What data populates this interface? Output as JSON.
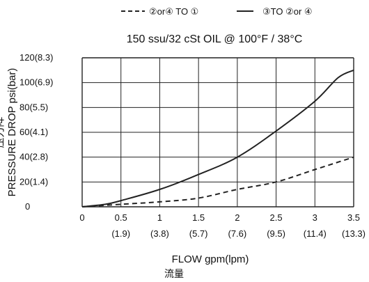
{
  "chart_data": {
    "type": "line",
    "title": "150 ssu/32 cSt OIL @ 100°F / 38°C",
    "xlabel": "FLOW gpm(lpm)",
    "xlabel_cn": "流量",
    "ylabel": "PRESSURE DROP psi(bar)",
    "ylabel_cn": "压力降",
    "xlim": [
      0,
      3.5
    ],
    "ylim": [
      0,
      120
    ],
    "grid": true,
    "legend_position": "top",
    "x_ticks": [
      {
        "value": 0,
        "label": "0",
        "sublabel": ""
      },
      {
        "value": 0.5,
        "label": "0.5",
        "sublabel": "(1.9)"
      },
      {
        "value": 1,
        "label": "1",
        "sublabel": "(3.8)"
      },
      {
        "value": 1.5,
        "label": "1.5",
        "sublabel": "(5.7)"
      },
      {
        "value": 2,
        "label": "2",
        "sublabel": "(7.6)"
      },
      {
        "value": 2.5,
        "label": "2.5",
        "sublabel": "(9.5)"
      },
      {
        "value": 3,
        "label": "3",
        "sublabel": "(11.4)"
      },
      {
        "value": 3.5,
        "label": "3.5",
        "sublabel": "(13.3)"
      }
    ],
    "y_ticks": [
      {
        "value": 0,
        "label": "0"
      },
      {
        "value": 20,
        "label": "20(1.4)"
      },
      {
        "value": 40,
        "label": "40(2.8)"
      },
      {
        "value": 60,
        "label": "60(4.1)"
      },
      {
        "value": 80,
        "label": "80(5.5)"
      },
      {
        "value": 100,
        "label": "100(6.9)"
      },
      {
        "value": 120,
        "label": "120(8.3)"
      }
    ],
    "series": [
      {
        "name": "②or④ TO ①",
        "style": "dashed",
        "color": "#222222",
        "x": [
          0,
          0.5,
          1.0,
          1.5,
          2.0,
          2.5,
          3.0,
          3.5
        ],
        "y": [
          0,
          2,
          4,
          7,
          14,
          20,
          30,
          40
        ]
      },
      {
        "name": "③TO ②or ④",
        "style": "solid",
        "color": "#222222",
        "x": [
          0,
          0.3,
          0.5,
          1.0,
          1.5,
          2.0,
          2.5,
          3.0,
          3.3,
          3.5
        ],
        "y": [
          0,
          2,
          5,
          14,
          26,
          40,
          61,
          85,
          104,
          110
        ]
      }
    ]
  }
}
